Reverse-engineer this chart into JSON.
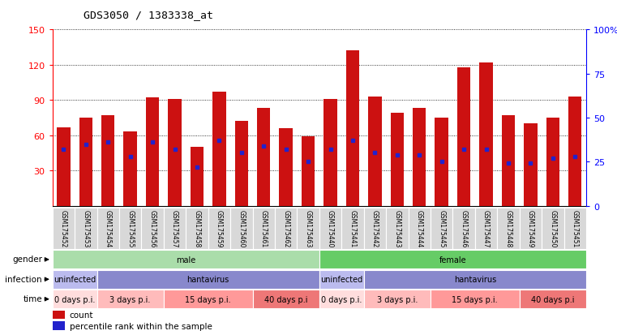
{
  "title": "GDS3050 / 1383338_at",
  "samples": [
    "GSM175452",
    "GSM175453",
    "GSM175454",
    "GSM175455",
    "GSM175456",
    "GSM175457",
    "GSM175458",
    "GSM175459",
    "GSM175460",
    "GSM175461",
    "GSM175462",
    "GSM175463",
    "GSM175440",
    "GSM175441",
    "GSM175442",
    "GSM175443",
    "GSM175444",
    "GSM175445",
    "GSM175446",
    "GSM175447",
    "GSM175448",
    "GSM175449",
    "GSM175450",
    "GSM175451"
  ],
  "counts": [
    67,
    75,
    77,
    63,
    92,
    91,
    50,
    97,
    72,
    83,
    66,
    59,
    91,
    132,
    93,
    79,
    83,
    75,
    118,
    122,
    77,
    70,
    75,
    93
  ],
  "percentile_ranks": [
    32,
    35,
    36,
    28,
    36,
    32,
    22,
    37,
    30,
    34,
    32,
    25,
    32,
    37,
    30,
    29,
    29,
    25,
    32,
    32,
    24,
    24,
    27,
    28
  ],
  "ylim_left": [
    0,
    150
  ],
  "yticks_left": [
    30,
    60,
    90,
    120,
    150
  ],
  "ylim_right": [
    0,
    100
  ],
  "yticks_right": [
    0,
    25,
    50,
    75,
    100
  ],
  "bar_color": "#cc1111",
  "dot_color": "#2222cc",
  "gender_groups": [
    {
      "label": "male",
      "start": 0,
      "end": 12,
      "color": "#aaddaa"
    },
    {
      "label": "female",
      "start": 12,
      "end": 24,
      "color": "#66cc66"
    }
  ],
  "infection_groups": [
    {
      "label": "uninfected",
      "start": 0,
      "end": 2,
      "color": "#bbbbee"
    },
    {
      "label": "hantavirus",
      "start": 2,
      "end": 12,
      "color": "#8888cc"
    },
    {
      "label": "uninfected",
      "start": 12,
      "end": 14,
      "color": "#bbbbee"
    },
    {
      "label": "hantavirus",
      "start": 14,
      "end": 24,
      "color": "#8888cc"
    }
  ],
  "time_groups": [
    {
      "label": "0 days p.i.",
      "start": 0,
      "end": 2,
      "color": "#ffdddd"
    },
    {
      "label": "3 days p.i.",
      "start": 2,
      "end": 5,
      "color": "#ffbbbb"
    },
    {
      "label": "15 days p.i.",
      "start": 5,
      "end": 9,
      "color": "#ff9999"
    },
    {
      "label": "40 days p.i",
      "start": 9,
      "end": 12,
      "color": "#ee7777"
    },
    {
      "label": "0 days p.i.",
      "start": 12,
      "end": 14,
      "color": "#ffdddd"
    },
    {
      "label": "3 days p.i.",
      "start": 14,
      "end": 17,
      "color": "#ffbbbb"
    },
    {
      "label": "15 days p.i.",
      "start": 17,
      "end": 21,
      "color": "#ff9999"
    },
    {
      "label": "40 days p.i",
      "start": 21,
      "end": 24,
      "color": "#ee7777"
    }
  ],
  "label_gender": "gender",
  "label_infection": "infection",
  "label_time": "time",
  "legend_count": "count",
  "legend_percentile": "percentile rank within the sample"
}
